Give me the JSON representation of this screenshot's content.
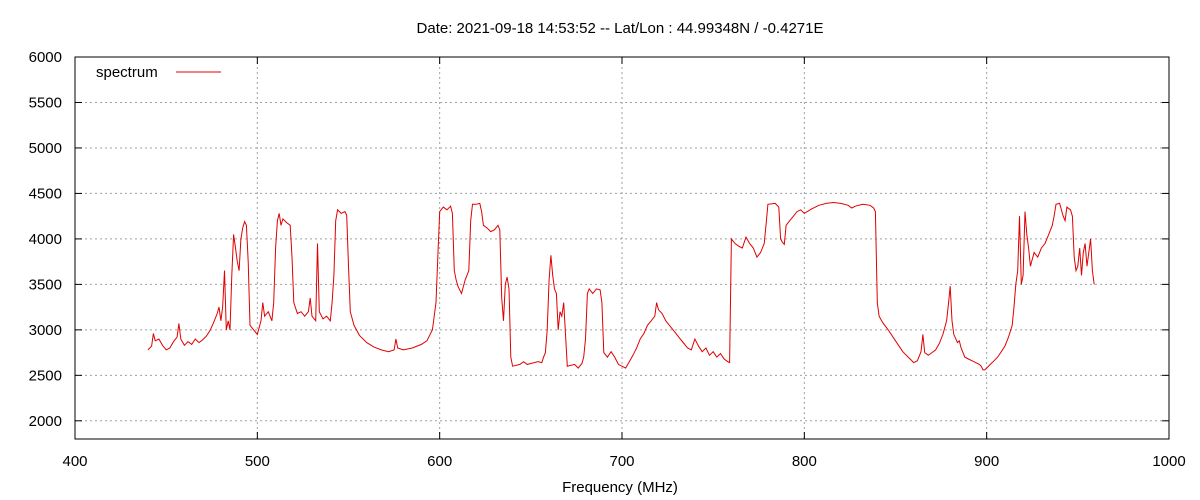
{
  "chart_data": {
    "type": "line",
    "title": "Date: 2021-09-18 14:53:52  --  Lat/Lon : 44.99348N / -0.4271E",
    "xlabel": "Frequency (MHz)",
    "ylabel": "",
    "xlim": [
      400,
      1000
    ],
    "ylim": [
      1800,
      6000
    ],
    "xticks": [
      400,
      500,
      600,
      700,
      800,
      900,
      1000
    ],
    "yticks": [
      2000,
      2500,
      3000,
      3500,
      4000,
      4500,
      5000,
      5500,
      6000
    ],
    "grid": true,
    "legend_position": "top-left",
    "series": [
      {
        "name": "spectrum",
        "color": "#e00000",
        "points": [
          [
            440,
            2780
          ],
          [
            442,
            2820
          ],
          [
            443,
            2960
          ],
          [
            444,
            2880
          ],
          [
            446,
            2900
          ],
          [
            448,
            2830
          ],
          [
            450,
            2780
          ],
          [
            452,
            2800
          ],
          [
            454,
            2870
          ],
          [
            456,
            2920
          ],
          [
            457,
            3070
          ],
          [
            458,
            2900
          ],
          [
            460,
            2830
          ],
          [
            462,
            2870
          ],
          [
            464,
            2840
          ],
          [
            466,
            2900
          ],
          [
            468,
            2860
          ],
          [
            470,
            2890
          ],
          [
            472,
            2930
          ],
          [
            474,
            2990
          ],
          [
            476,
            3080
          ],
          [
            478,
            3180
          ],
          [
            479,
            3250
          ],
          [
            480,
            3100
          ],
          [
            481,
            3260
          ],
          [
            482,
            3650
          ],
          [
            483,
            3000
          ],
          [
            484,
            3100
          ],
          [
            485,
            3000
          ],
          [
            486,
            3600
          ],
          [
            487,
            4050
          ],
          [
            488,
            3900
          ],
          [
            489,
            3750
          ],
          [
            490,
            3650
          ],
          [
            491,
            4000
          ],
          [
            492,
            4120
          ],
          [
            493,
            4190
          ],
          [
            494,
            4150
          ],
          [
            495,
            3750
          ],
          [
            496,
            3050
          ],
          [
            498,
            3000
          ],
          [
            500,
            2950
          ],
          [
            502,
            3100
          ],
          [
            503,
            3300
          ],
          [
            504,
            3150
          ],
          [
            506,
            3200
          ],
          [
            508,
            3100
          ],
          [
            509,
            3300
          ],
          [
            510,
            3900
          ],
          [
            511,
            4200
          ],
          [
            512,
            4280
          ],
          [
            513,
            4150
          ],
          [
            514,
            4220
          ],
          [
            516,
            4180
          ],
          [
            518,
            4150
          ],
          [
            519,
            3800
          ],
          [
            520,
            3300
          ],
          [
            522,
            3180
          ],
          [
            524,
            3200
          ],
          [
            526,
            3150
          ],
          [
            528,
            3200
          ],
          [
            529,
            3350
          ],
          [
            530,
            3150
          ],
          [
            532,
            3100
          ],
          [
            533,
            3950
          ],
          [
            534,
            3200
          ],
          [
            536,
            3120
          ],
          [
            538,
            3150
          ],
          [
            540,
            3100
          ],
          [
            541,
            3300
          ],
          [
            542,
            3600
          ],
          [
            543,
            4200
          ],
          [
            544,
            4320
          ],
          [
            546,
            4280
          ],
          [
            548,
            4300
          ],
          [
            549,
            4260
          ],
          [
            550,
            3700
          ],
          [
            551,
            3200
          ],
          [
            553,
            3050
          ],
          [
            556,
            2940
          ],
          [
            560,
            2860
          ],
          [
            564,
            2810
          ],
          [
            568,
            2780
          ],
          [
            572,
            2760
          ],
          [
            575,
            2780
          ],
          [
            576,
            2900
          ],
          [
            577,
            2800
          ],
          [
            580,
            2780
          ],
          [
            585,
            2800
          ],
          [
            590,
            2840
          ],
          [
            593,
            2880
          ],
          [
            596,
            3000
          ],
          [
            598,
            3300
          ],
          [
            599,
            3800
          ],
          [
            600,
            4300
          ],
          [
            602,
            4350
          ],
          [
            604,
            4320
          ],
          [
            606,
            4360
          ],
          [
            607,
            4280
          ],
          [
            608,
            3650
          ],
          [
            609,
            3550
          ],
          [
            610,
            3480
          ],
          [
            612,
            3400
          ],
          [
            614,
            3550
          ],
          [
            615,
            3600
          ],
          [
            616,
            3650
          ],
          [
            617,
            4200
          ],
          [
            618,
            4380
          ],
          [
            620,
            4380
          ],
          [
            622,
            4390
          ],
          [
            623,
            4300
          ],
          [
            624,
            4150
          ],
          [
            626,
            4120
          ],
          [
            628,
            4080
          ],
          [
            630,
            4100
          ],
          [
            632,
            4150
          ],
          [
            633,
            4100
          ],
          [
            634,
            3350
          ],
          [
            635,
            3100
          ],
          [
            636,
            3500
          ],
          [
            637,
            3580
          ],
          [
            638,
            3450
          ],
          [
            639,
            2700
          ],
          [
            640,
            2600
          ],
          [
            644,
            2620
          ],
          [
            646,
            2650
          ],
          [
            648,
            2620
          ],
          [
            650,
            2630
          ],
          [
            654,
            2650
          ],
          [
            656,
            2640
          ],
          [
            657,
            2700
          ],
          [
            658,
            2750
          ],
          [
            659,
            3000
          ],
          [
            660,
            3550
          ],
          [
            661,
            3820
          ],
          [
            662,
            3600
          ],
          [
            663,
            3450
          ],
          [
            664,
            3400
          ],
          [
            665,
            3000
          ],
          [
            666,
            3200
          ],
          [
            667,
            3150
          ],
          [
            668,
            3300
          ],
          [
            669,
            2950
          ],
          [
            670,
            2600
          ],
          [
            674,
            2620
          ],
          [
            676,
            2580
          ],
          [
            678,
            2630
          ],
          [
            679,
            2700
          ],
          [
            680,
            2900
          ],
          [
            681,
            3400
          ],
          [
            682,
            3450
          ],
          [
            684,
            3400
          ],
          [
            686,
            3450
          ],
          [
            688,
            3440
          ],
          [
            689,
            3300
          ],
          [
            690,
            2750
          ],
          [
            692,
            2700
          ],
          [
            694,
            2760
          ],
          [
            696,
            2700
          ],
          [
            698,
            2620
          ],
          [
            700,
            2600
          ],
          [
            702,
            2580
          ],
          [
            704,
            2650
          ],
          [
            706,
            2720
          ],
          [
            708,
            2800
          ],
          [
            710,
            2900
          ],
          [
            712,
            2960
          ],
          [
            714,
            3050
          ],
          [
            716,
            3100
          ],
          [
            718,
            3150
          ],
          [
            719,
            3300
          ],
          [
            720,
            3220
          ],
          [
            722,
            3180
          ],
          [
            724,
            3100
          ],
          [
            726,
            3050
          ],
          [
            728,
            3000
          ],
          [
            730,
            2950
          ],
          [
            732,
            2900
          ],
          [
            734,
            2850
          ],
          [
            736,
            2800
          ],
          [
            738,
            2780
          ],
          [
            740,
            2900
          ],
          [
            742,
            2820
          ],
          [
            744,
            2760
          ],
          [
            746,
            2800
          ],
          [
            748,
            2720
          ],
          [
            750,
            2760
          ],
          [
            752,
            2700
          ],
          [
            754,
            2740
          ],
          [
            756,
            2680
          ],
          [
            758,
            2650
          ],
          [
            759,
            2640
          ],
          [
            760,
            4000
          ],
          [
            762,
            3950
          ],
          [
            764,
            3920
          ],
          [
            766,
            3900
          ],
          [
            768,
            4020
          ],
          [
            770,
            3950
          ],
          [
            772,
            3900
          ],
          [
            774,
            3800
          ],
          [
            776,
            3850
          ],
          [
            777,
            3900
          ],
          [
            778,
            3950
          ],
          [
            779,
            4150
          ],
          [
            780,
            4380
          ],
          [
            784,
            4390
          ],
          [
            786,
            4350
          ],
          [
            787,
            4000
          ],
          [
            788,
            3960
          ],
          [
            789,
            3940
          ],
          [
            790,
            4150
          ],
          [
            792,
            4200
          ],
          [
            794,
            4250
          ],
          [
            796,
            4300
          ],
          [
            798,
            4320
          ],
          [
            800,
            4280
          ],
          [
            804,
            4330
          ],
          [
            808,
            4370
          ],
          [
            812,
            4390
          ],
          [
            816,
            4400
          ],
          [
            820,
            4390
          ],
          [
            824,
            4370
          ],
          [
            826,
            4340
          ],
          [
            828,
            4360
          ],
          [
            832,
            4380
          ],
          [
            836,
            4370
          ],
          [
            838,
            4340
          ],
          [
            839,
            4300
          ],
          [
            840,
            3300
          ],
          [
            841,
            3150
          ],
          [
            843,
            3080
          ],
          [
            846,
            3000
          ],
          [
            850,
            2880
          ],
          [
            854,
            2760
          ],
          [
            858,
            2680
          ],
          [
            860,
            2640
          ],
          [
            862,
            2660
          ],
          [
            864,
            2760
          ],
          [
            865,
            2950
          ],
          [
            866,
            2750
          ],
          [
            868,
            2720
          ],
          [
            870,
            2750
          ],
          [
            872,
            2780
          ],
          [
            874,
            2850
          ],
          [
            876,
            2950
          ],
          [
            878,
            3100
          ],
          [
            879,
            3280
          ],
          [
            880,
            3480
          ],
          [
            881,
            3100
          ],
          [
            882,
            2950
          ],
          [
            884,
            2860
          ],
          [
            885,
            2880
          ],
          [
            886,
            2800
          ],
          [
            888,
            2700
          ],
          [
            890,
            2680
          ],
          [
            892,
            2660
          ],
          [
            894,
            2640
          ],
          [
            896,
            2620
          ],
          [
            897,
            2600
          ],
          [
            898,
            2560
          ],
          [
            899,
            2560
          ],
          [
            900,
            2580
          ],
          [
            902,
            2620
          ],
          [
            904,
            2660
          ],
          [
            906,
            2700
          ],
          [
            908,
            2760
          ],
          [
            910,
            2820
          ],
          [
            912,
            2920
          ],
          [
            914,
            3050
          ],
          [
            915,
            3250
          ],
          [
            916,
            3500
          ],
          [
            917,
            3650
          ],
          [
            918,
            4250
          ],
          [
            919,
            3500
          ],
          [
            920,
            3600
          ],
          [
            921,
            4300
          ],
          [
            922,
            4050
          ],
          [
            923,
            3900
          ],
          [
            924,
            3700
          ],
          [
            926,
            3850
          ],
          [
            928,
            3800
          ],
          [
            930,
            3900
          ],
          [
            932,
            3950
          ],
          [
            934,
            4050
          ],
          [
            936,
            4150
          ],
          [
            937,
            4250
          ],
          [
            938,
            4380
          ],
          [
            940,
            4390
          ],
          [
            942,
            4250
          ],
          [
            943,
            4200
          ],
          [
            944,
            4350
          ],
          [
            946,
            4320
          ],
          [
            947,
            4250
          ],
          [
            948,
            3800
          ],
          [
            949,
            3650
          ],
          [
            950,
            3700
          ],
          [
            951,
            3900
          ],
          [
            952,
            3600
          ],
          [
            953,
            3850
          ],
          [
            954,
            3950
          ],
          [
            955,
            3700
          ],
          [
            956,
            3850
          ],
          [
            957,
            4000
          ],
          [
            958,
            3650
          ],
          [
            959,
            3500
          ]
        ]
      }
    ]
  }
}
